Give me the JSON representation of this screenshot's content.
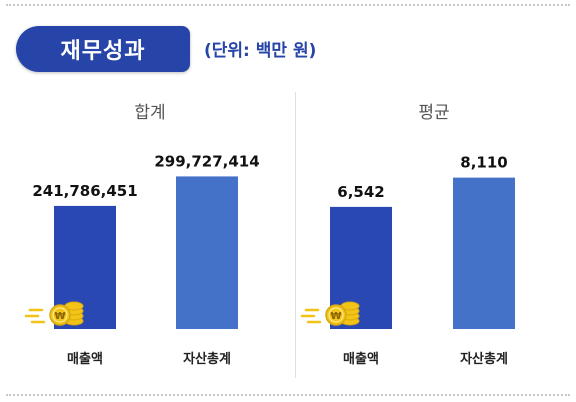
{
  "header": {
    "title": "재무성과",
    "unit_note": "(단위: 백만 원)"
  },
  "colors": {
    "title_bg": "#2745a8",
    "sales_bar": "#2a48b4",
    "assets_bar": "#4472c8",
    "coin": "#f2c418",
    "coin_dark": "#d9a80e"
  },
  "icons": {
    "coin_stack": "coin-stack-icon"
  },
  "chart_data": [
    {
      "type": "bar",
      "title": "합계",
      "categories": [
        "매출액",
        "자산총계"
      ],
      "values": [
        241786451,
        299727414
      ],
      "value_labels": [
        "241,786,451",
        "299,727,414"
      ],
      "ylim": [
        0,
        330000000
      ]
    },
    {
      "type": "bar",
      "title": "평균",
      "categories": [
        "매출액",
        "자산총계"
      ],
      "values": [
        6542,
        8110
      ],
      "value_labels": [
        "6,542",
        "8,110"
      ],
      "ylim": [
        0,
        9000
      ]
    }
  ]
}
